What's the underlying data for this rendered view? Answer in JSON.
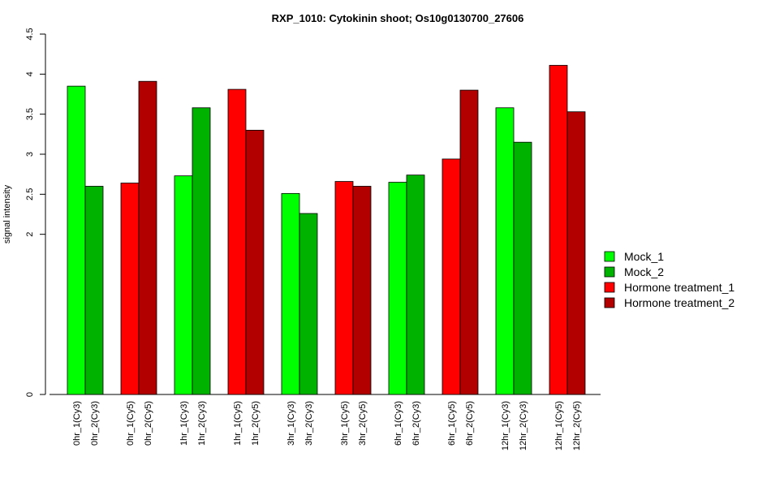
{
  "chart_data": {
    "type": "bar",
    "title": "RXP_1010: Cytokinin shoot; Os10g0130700_27606",
    "ylabel": "signal intensity",
    "xlabel": "",
    "yticks": [
      "0",
      "2",
      "2.5",
      "3",
      "3.5",
      "4",
      "4.5"
    ],
    "categories": [
      "0hr_1(Cy3)",
      "0hr_2(Cy3)",
      "0hr_1(Cy5)",
      "0hr_2(Cy5)",
      "1hr_1(Cy3)",
      "1hr_2(Cy3)",
      "1hr_1(Cy5)",
      "1hr_2(Cy5)",
      "3hr_1(Cy3)",
      "3hr_2(Cy3)",
      "3hr_1(Cy5)",
      "3hr_2(Cy5)",
      "6hr_1(Cy3)",
      "6hr_2(Cy3)",
      "6hr_1(Cy5)",
      "6hr_2(Cy5)",
      "12hr_1(Cy3)",
      "12hr_2(Cy3)",
      "12hr_1(Cy5)",
      "12hr_2(Cy5)"
    ],
    "values": [
      3.85,
      2.6,
      2.64,
      3.91,
      2.73,
      3.58,
      3.81,
      3.3,
      2.51,
      2.26,
      2.66,
      2.6,
      2.65,
      2.74,
      2.94,
      3.8,
      3.58,
      3.15,
      4.11,
      3.53
    ],
    "series_index": [
      0,
      1,
      2,
      3,
      0,
      1,
      2,
      3,
      0,
      1,
      2,
      3,
      0,
      1,
      2,
      3,
      0,
      1,
      2,
      3
    ],
    "legend": [
      {
        "name": "Mock_1",
        "color": "#00ff00"
      },
      {
        "name": "Mock_2",
        "color": "#00b200"
      },
      {
        "name": "Hormone treatment_1",
        "color": "#ff0000"
      },
      {
        "name": "Hormone treatment_2",
        "color": "#b20000"
      }
    ],
    "legend_position": "right",
    "grid": false
  }
}
